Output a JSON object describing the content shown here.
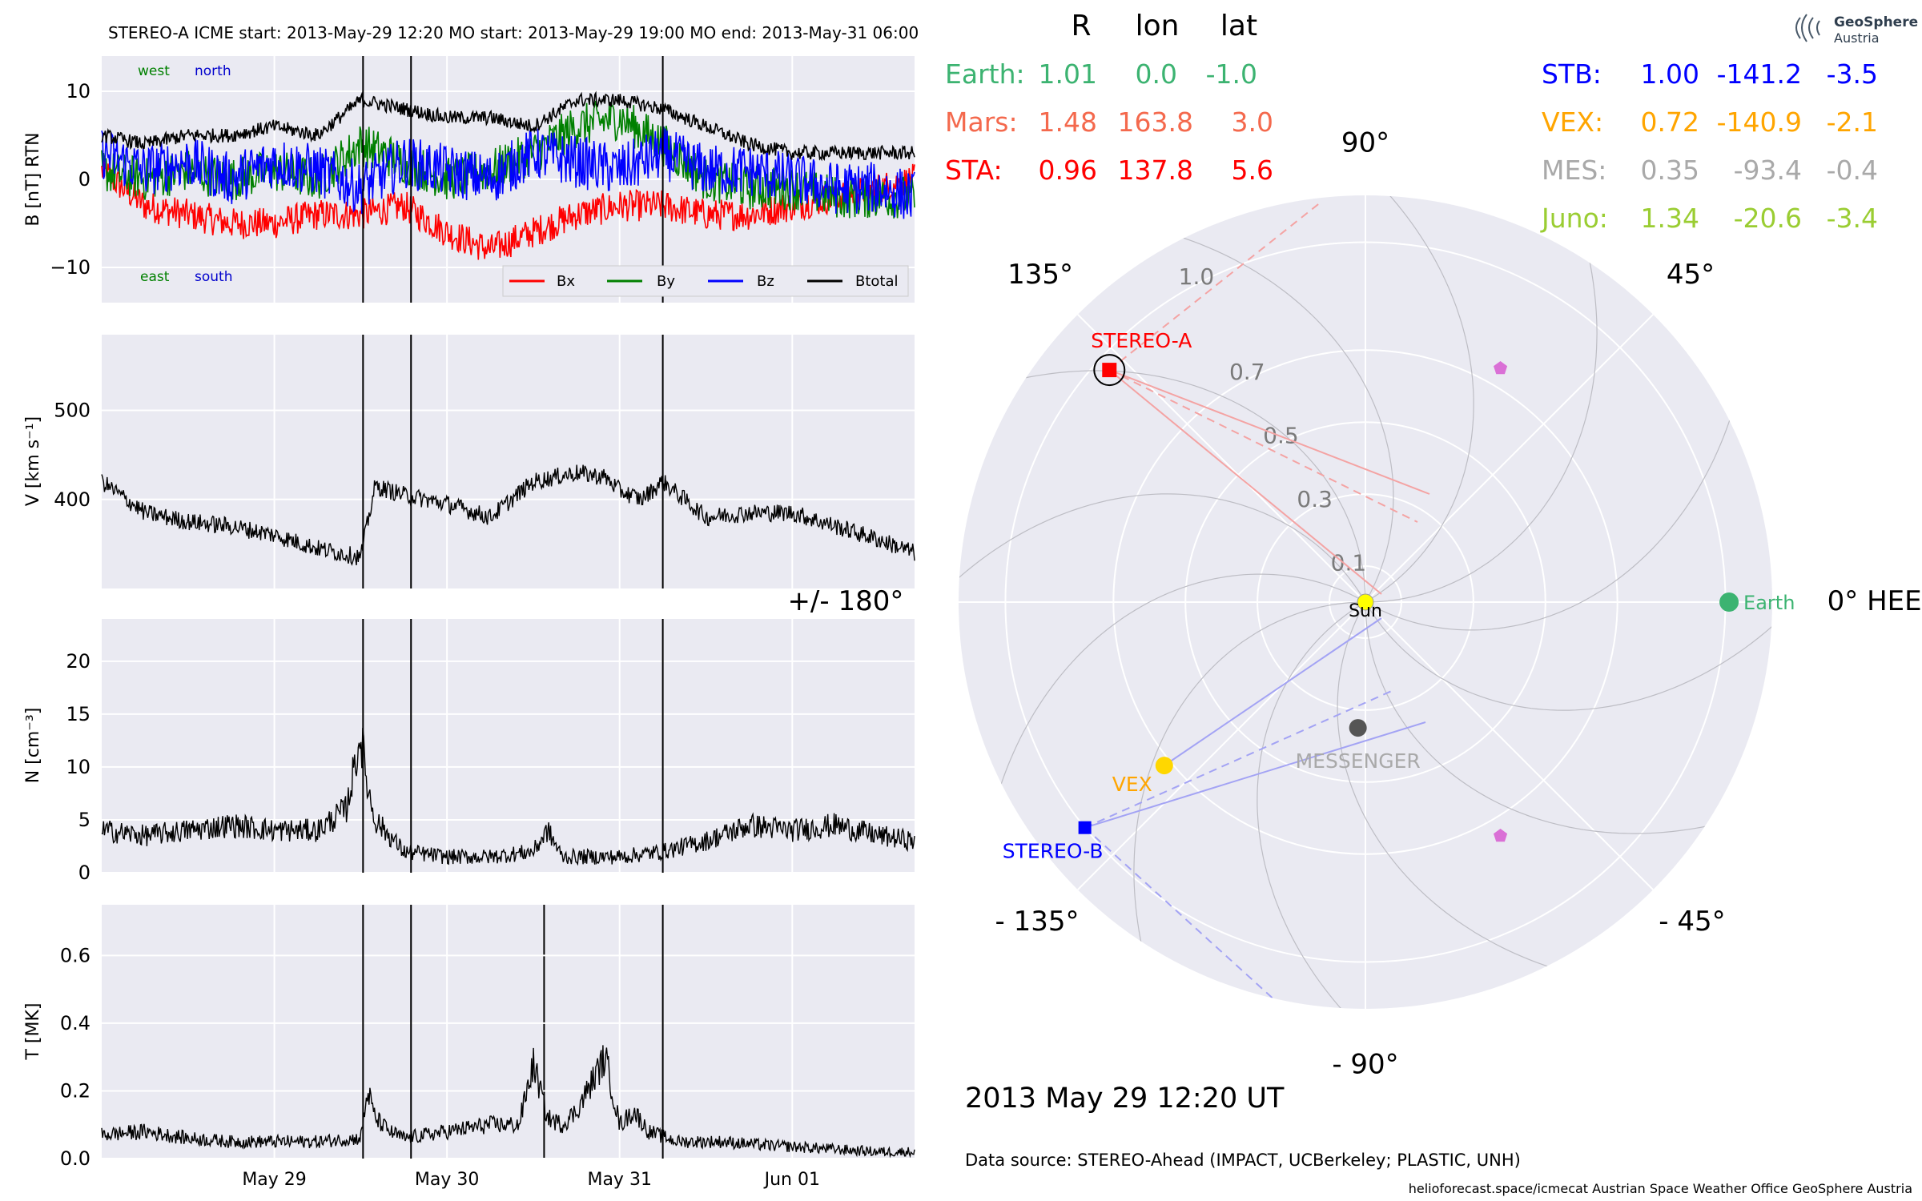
{
  "header": {
    "title": "STEREO-A    ICME start: 2013-May-29 12:20   MO start: 2013-May-29 19:00   MO end: 2013-May-31 06:00"
  },
  "footer": {
    "timestamp": "2013 May 29  12:20 UT",
    "source": "Data source: STEREO-Ahead (IMPACT, UCBerkeley; PLASTIC, UNH)",
    "credits": "helioforecast.space/icmecat   Austrian Space Weather Office   GeoSphere Austria"
  },
  "logo": {
    "line1": "GeoSphere",
    "line2": "Austria"
  },
  "positions_table": {
    "headers": [
      "R",
      "lon",
      "lat"
    ],
    "left": [
      {
        "name": "Earth:",
        "R": "1.01",
        "lon": "0.0",
        "lat": "-1.0",
        "color": "#3cb371"
      },
      {
        "name": "Mars:",
        "R": "1.48",
        "lon": "163.8",
        "lat": "3.0",
        "color": "#f4694d"
      },
      {
        "name": "STA:",
        "R": "0.96",
        "lon": "137.8",
        "lat": "5.6",
        "color": "#ff0000"
      }
    ],
    "right": [
      {
        "name": "STB:",
        "R": "1.00",
        "lon": "-141.2",
        "lat": "-3.5",
        "color": "#0000ff"
      },
      {
        "name": "VEX:",
        "R": "0.72",
        "lon": "-140.9",
        "lat": "-2.1",
        "color": "#ffa500"
      },
      {
        "name": "MES:",
        "R": "0.35",
        "lon": "-93.4",
        "lat": "-0.4",
        "color": "#a9a9a9"
      },
      {
        "name": "Juno:",
        "R": "1.34",
        "lon": "-20.6",
        "lat": "-3.4",
        "color": "#9acd32"
      }
    ]
  },
  "chart_data": [
    {
      "type": "line",
      "ylabel": "B [nT] RTN",
      "ylim": [
        -14,
        14
      ],
      "yticks": [
        "10",
        "0",
        "−10"
      ],
      "yticks_values": [
        10,
        0,
        -10
      ],
      "xlim": [
        "2013-05-28 00:00",
        "2013-06-01 17:00"
      ],
      "xticks": [
        "May 29",
        "May 30",
        "May 31",
        "Jun 01"
      ],
      "corner_labels": {
        "west": "west",
        "north": "north",
        "east": "east",
        "south": "south"
      },
      "legend": {
        "placement": "bottom-right",
        "entries": [
          "Bx",
          "By",
          "Bz",
          "Btotal"
        ]
      },
      "series": [
        {
          "name": "Bx",
          "color": "#ff0000",
          "t_hours": [
            0,
            6,
            12,
            18,
            24,
            30,
            36,
            42,
            48,
            54,
            60,
            66,
            72,
            78,
            84,
            90,
            96,
            102,
            108,
            113
          ],
          "values": [
            1,
            -3,
            -4,
            -5,
            -5,
            -4,
            -4,
            -3,
            -6,
            -8,
            -6,
            -4,
            -3,
            -3,
            -4,
            -4,
            -3,
            -2,
            -1,
            0
          ]
        },
        {
          "name": "By",
          "color": "#008000",
          "t_hours": [
            0,
            6,
            12,
            18,
            24,
            30,
            36,
            42,
            48,
            54,
            60,
            66,
            72,
            78,
            84,
            90,
            96,
            102,
            108,
            113
          ],
          "values": [
            1,
            0,
            1,
            0,
            1,
            0,
            4,
            2,
            0,
            1,
            3,
            6,
            7,
            4,
            0,
            -1,
            -1,
            -2,
            -2,
            -2
          ]
        },
        {
          "name": "Bz",
          "color": "#0000ff",
          "t_hours": [
            0,
            6,
            12,
            18,
            24,
            30,
            36,
            42,
            48,
            54,
            60,
            66,
            72,
            78,
            84,
            90,
            96,
            102,
            108,
            113
          ],
          "values": [
            3,
            1,
            2,
            0,
            2,
            1,
            -1,
            2,
            1,
            0,
            3,
            2,
            1,
            3,
            1,
            1,
            0,
            -1,
            -1,
            -2
          ]
        },
        {
          "name": "Btotal",
          "color": "#000000",
          "t_hours": [
            0,
            6,
            12,
            18,
            24,
            30,
            36,
            42,
            48,
            54,
            60,
            66,
            72,
            78,
            84,
            90,
            96,
            102,
            108,
            113
          ],
          "values": [
            5,
            4,
            5,
            5,
            6,
            5,
            9,
            8,
            7,
            7,
            6,
            9,
            9,
            8,
            6,
            4,
            3,
            3,
            3,
            3
          ]
        }
      ]
    },
    {
      "type": "line",
      "ylabel": "V [km s⁻¹]",
      "ylim": [
        300,
        585
      ],
      "yticks": [
        "500",
        "400"
      ],
      "yticks_values": [
        500,
        400
      ],
      "series": [
        {
          "name": "",
          "color": "#000000",
          "t_hours": [
            0,
            6,
            12,
            18,
            24,
            30,
            36,
            38,
            42,
            48,
            54,
            60,
            66,
            70,
            72,
            75,
            78,
            84,
            90,
            96,
            102,
            108,
            113
          ],
          "values": [
            420,
            385,
            375,
            370,
            360,
            345,
            335,
            415,
            405,
            395,
            380,
            420,
            430,
            425,
            410,
            400,
            420,
            380,
            385,
            385,
            370,
            355,
            340
          ]
        }
      ]
    },
    {
      "type": "line",
      "ylabel": "N [cm⁻³]",
      "ylim": [
        0,
        24
      ],
      "yticks": [
        "20",
        "15",
        "10",
        "5",
        "0"
      ],
      "yticks_values": [
        20,
        15,
        10,
        5,
        0
      ],
      "series": [
        {
          "name": "",
          "color": "#000000",
          "t_hours": [
            0,
            6,
            12,
            18,
            24,
            30,
            34,
            36,
            37,
            38,
            40,
            42,
            48,
            54,
            60,
            62,
            64,
            72,
            78,
            84,
            90,
            96,
            102,
            108,
            113
          ],
          "values": [
            4,
            3.5,
            4,
            4.5,
            4,
            4,
            6,
            13,
            8,
            5,
            3.5,
            2,
            1.5,
            1.5,
            2,
            4,
            1.5,
            1.5,
            2,
            3,
            4.5,
            4,
            4.5,
            3.5,
            3
          ]
        }
      ]
    },
    {
      "type": "line",
      "ylabel": "T [MK]",
      "ylim": [
        0,
        0.75
      ],
      "yticks": [
        "0.6",
        "0.4",
        "0.2",
        "0.0"
      ],
      "yticks_values": [
        0.6,
        0.4,
        0.2,
        0.0
      ],
      "series": [
        {
          "name": "",
          "color": "#000000",
          "t_hours": [
            0,
            6,
            12,
            18,
            24,
            30,
            36,
            37,
            38,
            40,
            42,
            48,
            54,
            58,
            60,
            62,
            64,
            66,
            70,
            72,
            74,
            76,
            80,
            86,
            92,
            100,
            108,
            113
          ],
          "values": [
            0.07,
            0.08,
            0.06,
            0.05,
            0.05,
            0.05,
            0.06,
            0.2,
            0.12,
            0.08,
            0.06,
            0.08,
            0.1,
            0.1,
            0.28,
            0.12,
            0.1,
            0.14,
            0.3,
            0.1,
            0.14,
            0.08,
            0.05,
            0.05,
            0.04,
            0.03,
            0.02,
            0.02
          ]
        }
      ]
    }
  ],
  "event_markers_hours": [
    36.33,
    43.0,
    78.0
  ],
  "polar_plot": {
    "angle_labels": [
      "90°",
      "45°",
      "0° HEEQ",
      "- 45°",
      "- 90°",
      "- 135°",
      "+/- 180°",
      "135°"
    ],
    "radial_ticks": [
      "0.1",
      "0.3",
      "0.5",
      "0.7",
      "1.0"
    ],
    "radial_ticks_values": [
      0.1,
      0.3,
      0.5,
      0.7,
      1.0
    ],
    "rmax": 1.13,
    "objects": [
      {
        "name": "Sun",
        "r": 0.0,
        "lon": 0.0,
        "color": "#ffff00",
        "marker": "circle"
      },
      {
        "name": "Earth",
        "r": 1.01,
        "lon": 0.0,
        "color": "#3cb371",
        "marker": "circle"
      },
      {
        "name": "STEREO-A",
        "r": 0.96,
        "lon": 137.8,
        "color": "#ff0000",
        "marker": "square"
      },
      {
        "name": "STEREO-B",
        "r": 1.0,
        "lon": -141.2,
        "color": "#0000ff",
        "marker": "square"
      },
      {
        "name": "VEX",
        "r": 0.72,
        "lon": -140.9,
        "color": "#ffd700",
        "marker": "circle"
      },
      {
        "name": "MESSENGER",
        "r": 0.35,
        "lon": -93.4,
        "color": "#555555",
        "marker": "circle"
      }
    ],
    "juno_markers": [
      {
        "r": 0.75,
        "lon": 60.0
      },
      {
        "r": 0.75,
        "lon": -60.0
      }
    ]
  }
}
